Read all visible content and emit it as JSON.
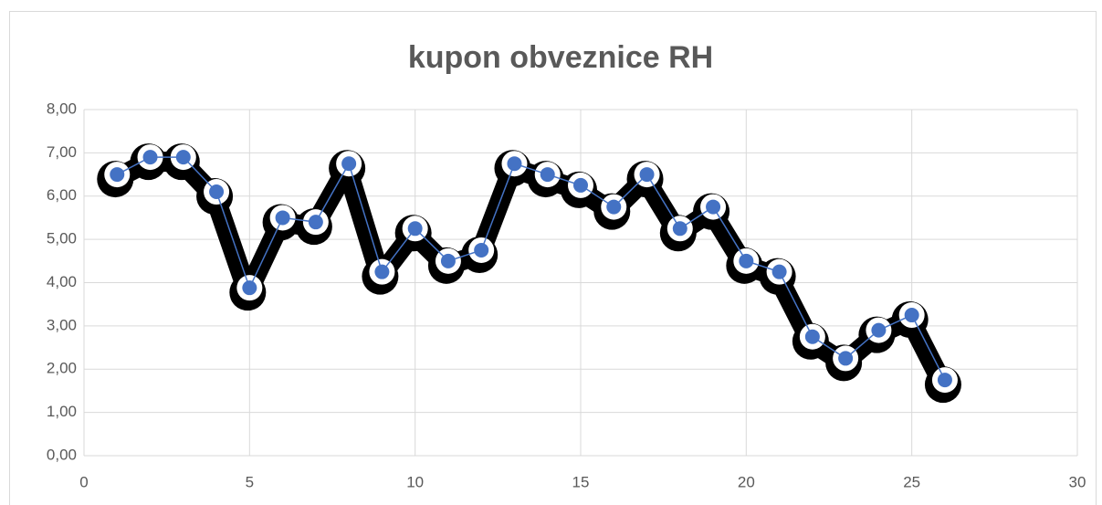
{
  "chart_data": {
    "type": "scatter",
    "title": "kupon obveznice RH",
    "series": [
      {
        "color": "#4472c4",
        "x": [
          1,
          2,
          3,
          4,
          5,
          6,
          7,
          8,
          9,
          10,
          11,
          12,
          13,
          14,
          15,
          16,
          17,
          18,
          19,
          20,
          21,
          22,
          23,
          24,
          25,
          26
        ],
        "values": [
          6.5,
          6.9,
          6.9,
          6.1,
          3.88,
          5.5,
          5.4,
          6.75,
          4.25,
          5.25,
          4.5,
          4.75,
          6.75,
          6.5,
          6.25,
          5.75,
          6.5,
          5.25,
          5.75,
          4.5,
          4.25,
          2.75,
          2.25,
          2.9,
          3.25,
          1.75
        ]
      }
    ],
    "xlim": [
      0,
      30
    ],
    "xticks": [
      0,
      5,
      10,
      15,
      20,
      25,
      30
    ],
    "ylim": [
      0,
      8
    ],
    "yticks": [
      {
        "value": 0,
        "label": "0,00"
      },
      {
        "value": 1,
        "label": "1,00"
      },
      {
        "value": 2,
        "label": "2,00"
      },
      {
        "value": 3,
        "label": "3,00"
      },
      {
        "value": 4,
        "label": "4,00"
      },
      {
        "value": 5,
        "label": "5,00"
      },
      {
        "value": 6,
        "label": "6,00"
      },
      {
        "value": 7,
        "label": "7,00"
      },
      {
        "value": 8,
        "label": "8,00"
      }
    ],
    "grid": true
  }
}
